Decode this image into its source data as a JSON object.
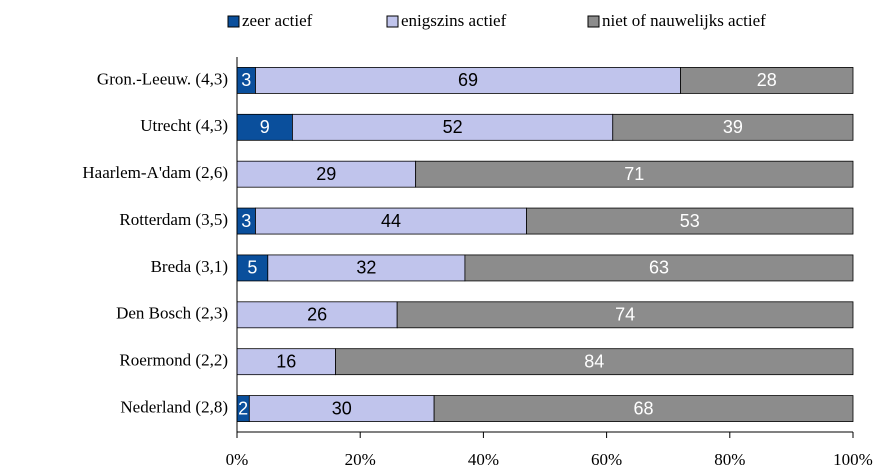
{
  "chart_data": {
    "type": "stacked_barh",
    "categories": [
      "Gron.-Leeuw. (4,3)",
      "Utrecht (4,3)",
      "Haarlem-A'dam (2,6)",
      "Rotterdam (3,5)",
      "Breda (3,1)",
      "Den Bosch (2,3)",
      "Roermond (2,2)",
      "Nederland (2,8)"
    ],
    "series": [
      {
        "name": "zeer actief",
        "color": "#0a4f9c",
        "label_color": "#ffffff",
        "values": [
          3,
          9,
          null,
          3,
          5,
          null,
          null,
          2
        ]
      },
      {
        "name": "enigszins actief",
        "color": "#c0c4ec",
        "label_color": "#000000",
        "values": [
          69,
          52,
          29,
          44,
          32,
          26,
          16,
          30
        ]
      },
      {
        "name": "niet of nauwelijks actief",
        "color": "#8c8c8c",
        "label_color": "#ffffff",
        "values": [
          28,
          39,
          71,
          53,
          63,
          74,
          84,
          68
        ]
      }
    ],
    "xlim": [
      0,
      100
    ],
    "xticks": [
      {
        "value": 0,
        "label": "0%"
      },
      {
        "value": 20,
        "label": "20%"
      },
      {
        "value": 40,
        "label": "40%"
      },
      {
        "value": 60,
        "label": "60%"
      },
      {
        "value": 80,
        "label": "80%"
      },
      {
        "value": 100,
        "label": "100%"
      }
    ],
    "legend": "top"
  }
}
